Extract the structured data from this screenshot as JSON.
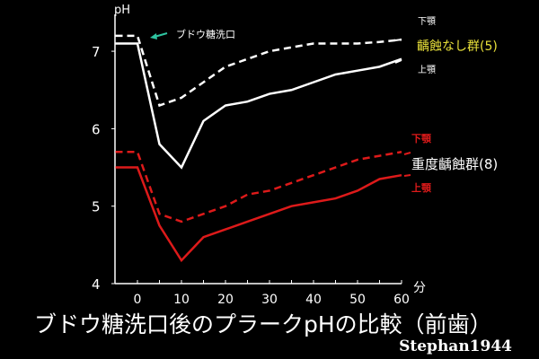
{
  "chart_data": {
    "type": "line",
    "title": "ブドウ糖洗口後のプラークpHの比較（前歯）",
    "credit": "Stephan1944",
    "ylabel": "pH",
    "xlabel": "分",
    "ylim": [
      4,
      7.4
    ],
    "xlim": [
      -5,
      60
    ],
    "yticks": [
      4,
      5,
      6,
      7
    ],
    "xticks": [
      0,
      10,
      20,
      30,
      40,
      50,
      60
    ],
    "annotation": "ブドウ糖洗口",
    "annotation_color": "#2ec4a0",
    "x": [
      -5,
      0,
      5,
      10,
      15,
      20,
      25,
      30,
      35,
      40,
      45,
      50,
      55,
      60
    ],
    "groups": [
      {
        "name": "齲蝕なし群(5)",
        "color": "#e8e03a",
        "lower_label": "下顎",
        "upper_label": "上顎"
      },
      {
        "name": "重度齲蝕群(8)",
        "color": "#ffffff",
        "lower_label": "下顎",
        "upper_label": "上顎"
      }
    ],
    "series": [
      {
        "name": "齲蝕なし群 下顎",
        "color": "#ffffff",
        "dash": true,
        "values": [
          7.2,
          7.2,
          6.3,
          6.4,
          6.6,
          6.8,
          6.9,
          7.0,
          7.05,
          7.1,
          7.1,
          7.1,
          7.12,
          7.15
        ]
      },
      {
        "name": "齲蝕なし群 上顎",
        "color": "#ffffff",
        "dash": false,
        "values": [
          7.1,
          7.1,
          5.8,
          5.5,
          6.1,
          6.3,
          6.35,
          6.45,
          6.5,
          6.6,
          6.7,
          6.75,
          6.8,
          6.9
        ]
      },
      {
        "name": "重度齲蝕群 下顎",
        "color": "#dd1a1a",
        "dash": true,
        "values": [
          5.7,
          5.7,
          4.9,
          4.8,
          4.9,
          5.0,
          5.15,
          5.2,
          5.3,
          5.4,
          5.5,
          5.6,
          5.65,
          5.7
        ]
      },
      {
        "name": "重度齲蝕群 上顎",
        "color": "#dd1a1a",
        "dash": false,
        "values": [
          5.5,
          5.5,
          4.75,
          4.3,
          4.6,
          4.7,
          4.8,
          4.9,
          5.0,
          5.05,
          5.1,
          5.2,
          5.35,
          5.4
        ]
      }
    ]
  }
}
